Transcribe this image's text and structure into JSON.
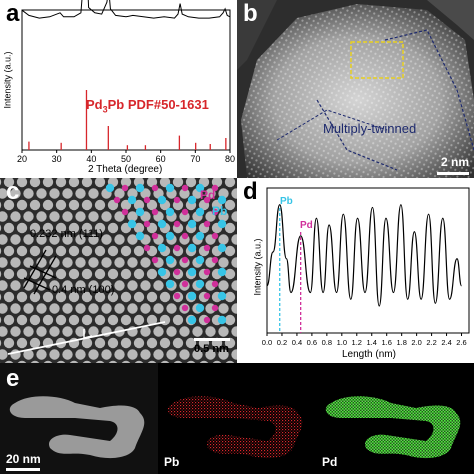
{
  "panels": {
    "a": {
      "label": "a",
      "annotation": "Pd",
      "annotation_sub": "3",
      "annotation_rest": "Pb PDF#50-1631",
      "ylabel": "Intensity (a.u.)",
      "xlabel": "2 Theta (degree)"
    },
    "b": {
      "label": "b",
      "annotation": "Multiply-twinned",
      "scale": "2 nm"
    },
    "c": {
      "label": "c",
      "d1": "0.232 nm (111)",
      "d2": "0.4 nm (100)",
      "pd": "Pd",
      "pb": "Pb",
      "scale": "0.5 nm"
    },
    "d": {
      "label": "d",
      "ylabel": "Intensity (a.u.)",
      "xlabel": "Length (nm)",
      "pb": "Pb",
      "pd": "Pd"
    },
    "e": {
      "label": "e",
      "scale": "20 nm",
      "pb": "Pb",
      "pd": "Pd"
    }
  },
  "colors": {
    "red": "#d7262b",
    "cyan": "#37c4e6",
    "magenta": "#d0309a",
    "green": "#4ee43c",
    "navy": "#1e2a6e",
    "yellow": "#e8d020"
  },
  "chart_data": [
    {
      "type": "line",
      "panel": "a",
      "xlabel": "2 Theta (degree)",
      "ylabel": "Intensity (a.u.)",
      "xlim": [
        20,
        80
      ],
      "xticks": [
        20,
        30,
        40,
        50,
        60,
        70,
        80
      ],
      "series": [
        {
          "name": "",
          "x": [
            20,
            22,
            25,
            28,
            31,
            32,
            35,
            37,
            38.2,
            38.7,
            39.2,
            41,
            43,
            44.5,
            45,
            45.5,
            47,
            50,
            52,
            55,
            58,
            61,
            64,
            65,
            65.6,
            66.2,
            68,
            71,
            74,
            77,
            78,
            78.6,
            79.2,
            80
          ],
          "y": [
            0.62,
            0.58,
            0.56,
            0.57,
            0.6,
            0.57,
            0.57,
            0.6,
            1.0,
            0.95,
            0.64,
            0.6,
            0.59,
            0.68,
            0.78,
            0.63,
            0.58,
            0.57,
            0.58,
            0.57,
            0.56,
            0.57,
            0.56,
            0.59,
            0.67,
            0.59,
            0.57,
            0.56,
            0.56,
            0.57,
            0.6,
            0.63,
            0.58,
            0.57
          ]
        }
      ],
      "reference_peaks": {
        "name": "Pd3Pb PDF#50-1631",
        "x": [
          22.0,
          31.3,
          38.6,
          44.9,
          50.4,
          55.6,
          65.4,
          70.1,
          74.3,
          78.8
        ],
        "intensity": [
          0.14,
          0.12,
          1.0,
          0.4,
          0.08,
          0.08,
          0.24,
          0.12,
          0.1,
          0.2
        ]
      }
    },
    {
      "type": "line",
      "panel": "d",
      "xlabel": "Length (nm)",
      "ylabel": "Intensity (a.u.)",
      "xlim": [
        0,
        2.7
      ],
      "xticks": [
        0.0,
        0.2,
        0.4,
        0.6,
        0.8,
        1.0,
        1.2,
        1.4,
        1.6,
        1.8,
        2.0,
        2.2,
        2.4,
        2.6
      ],
      "marked_positions": {
        "Pb": 0.17,
        "Pd": 0.45
      },
      "series": [
        {
          "name": "",
          "x": [
            0.0,
            0.08,
            0.17,
            0.26,
            0.32,
            0.45,
            0.58,
            0.66,
            0.75,
            0.83,
            0.93,
            1.02,
            1.12,
            1.21,
            1.31,
            1.41,
            1.5,
            1.59,
            1.69,
            1.79,
            1.88,
            1.97,
            2.06,
            2.16,
            2.25,
            2.35,
            2.44,
            2.54,
            2.6
          ],
          "y": [
            0.35,
            0.6,
            0.95,
            0.55,
            0.3,
            0.72,
            0.3,
            0.85,
            0.3,
            0.8,
            0.3,
            0.88,
            0.25,
            0.85,
            0.3,
            0.93,
            0.2,
            0.85,
            0.3,
            0.95,
            0.25,
            0.75,
            0.25,
            0.88,
            0.22,
            0.85,
            0.25,
            0.55,
            0.35
          ]
        }
      ]
    }
  ]
}
